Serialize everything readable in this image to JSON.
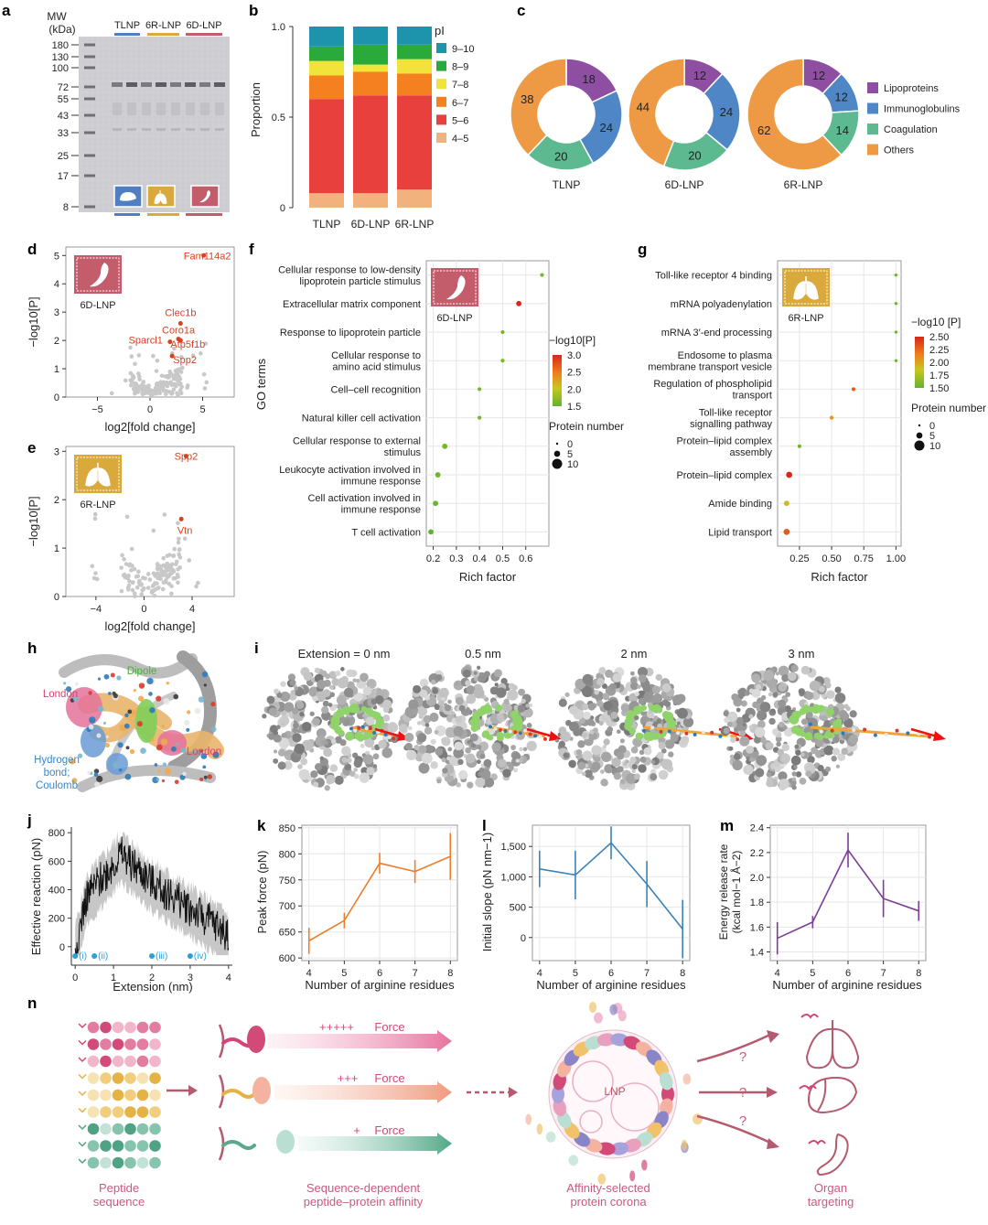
{
  "panels": {
    "a": {
      "label": "a",
      "mw_title": [
        "MW",
        "(kDa)"
      ],
      "mw_markers": [
        "180",
        "130",
        "100",
        "72",
        "55",
        "43",
        "33",
        "25",
        "17",
        "8"
      ],
      "lane_groups": [
        "TLNP",
        "6R-LNP",
        "6D-LNP"
      ]
    },
    "b": {
      "label": "b",
      "chart_data": {
        "type": "bar",
        "categories": [
          "TLNP",
          "6D-LNP",
          "6R-LNP"
        ],
        "ylabel": "Proportion",
        "yticks": [
          "0",
          "0.5",
          "1.0"
        ],
        "ylim": [
          0,
          1
        ],
        "legend_title": "pI",
        "series": [
          {
            "name": "4–5",
            "color": "#f2b27e",
            "values": [
              0.08,
              0.08,
              0.1
            ]
          },
          {
            "name": "5–6",
            "color": "#e8413d",
            "values": [
              0.52,
              0.54,
              0.52
            ]
          },
          {
            "name": "6–7",
            "color": "#f4801f",
            "values": [
              0.13,
              0.13,
              0.12
            ]
          },
          {
            "name": "7–8",
            "color": "#f2e33a",
            "values": [
              0.08,
              0.04,
              0.08
            ]
          },
          {
            "name": "8–9",
            "color": "#2aaa3a",
            "values": [
              0.08,
              0.11,
              0.08
            ]
          },
          {
            "name": "9–10",
            "color": "#1e93ac",
            "values": [
              0.11,
              0.1,
              0.1
            ]
          }
        ]
      }
    },
    "c": {
      "label": "c",
      "chart_data": {
        "type": "pie",
        "categories": [
          "Lipoproteins",
          "Immunoglobulins",
          "Coagulation",
          "Others"
        ],
        "colors": [
          "#8e4fa3",
          "#4f86c6",
          "#5cb990",
          "#ee9a45"
        ],
        "series": [
          {
            "name": "TLNP",
            "values": [
              18,
              24,
              20,
              38
            ]
          },
          {
            "name": "6D-LNP",
            "values": [
              12,
              24,
              20,
              44
            ]
          },
          {
            "name": "6R-LNP",
            "values": [
              12,
              12,
              14,
              62
            ]
          }
        ]
      }
    },
    "d": {
      "label": "d",
      "chart_data": {
        "type": "scatter",
        "xlabel": "log2[fold change]",
        "ylabel": "−log10[P]",
        "xlim": [
          -8,
          8
        ],
        "ylim": [
          0,
          5.3
        ],
        "xticks": [
          "−5",
          "0",
          "5"
        ],
        "yticks": [
          "0",
          "1",
          "2",
          "3",
          "4",
          "5"
        ],
        "badge": "6D-LNP",
        "highlight": [
          {
            "label": "Fam114a2",
            "x": 5.1,
            "y": 5.0
          },
          {
            "label": "Clec1b",
            "x": 2.9,
            "y": 2.6
          },
          {
            "label": "Coro1a",
            "x": 2.7,
            "y": 2.05
          },
          {
            "label": "Atp5f1b",
            "x": 2.9,
            "y": 2.0
          },
          {
            "label": "Sparcl1",
            "x": 1.9,
            "y": 1.95
          },
          {
            "label": "Spp2",
            "x": 2.1,
            "y": 1.45
          }
        ]
      }
    },
    "e": {
      "label": "e",
      "chart_data": {
        "type": "scatter",
        "xlabel": "log2[fold change]",
        "ylabel": "−log10[P]",
        "xlim": [
          -6.5,
          7.5
        ],
        "ylim": [
          0,
          3.1
        ],
        "xticks": [
          "−4",
          "0",
          "4"
        ],
        "yticks": [
          "0",
          "1",
          "2",
          "3"
        ],
        "badge": "6R-LNP",
        "highlight": [
          {
            "label": "Spp2",
            "x": 3.5,
            "y": 2.9
          },
          {
            "label": "Vtn",
            "x": 3.1,
            "y": 1.6
          }
        ]
      }
    },
    "f": {
      "label": "f",
      "chart_data": {
        "type": "scatter",
        "xlabel": "Rich factor",
        "ylabel": "GO terms",
        "badge": "6D-LNP",
        "xlim": [
          0.17,
          0.7
        ],
        "xticks": [
          "0.2",
          "0.3",
          "0.4",
          "0.5",
          "0.6"
        ],
        "color_title": "−log10[P]",
        "color_ticks": [
          "3.0",
          "2.5",
          "2.0",
          "1.5"
        ],
        "size_title": "Protein number",
        "size_ticks": [
          "0",
          "5",
          "10"
        ],
        "terms": [
          {
            "label": [
              "Cellular response to low-density",
              "lipoprotein particle stimulus"
            ],
            "x": 0.67,
            "p": 1.6,
            "n": 2
          },
          {
            "label": [
              "Extracellular matrix component"
            ],
            "x": 0.57,
            "p": 3.0,
            "n": 4
          },
          {
            "label": [
              "Response to lipoprotein particle"
            ],
            "x": 0.5,
            "p": 1.6,
            "n": 2
          },
          {
            "label": [
              "Cellular response to",
              "amino acid stimulus"
            ],
            "x": 0.5,
            "p": 1.6,
            "n": 2
          },
          {
            "label": [
              "Cell–cell recognition"
            ],
            "x": 0.4,
            "p": 1.6,
            "n": 2
          },
          {
            "label": [
              "Natural killer cell activation"
            ],
            "x": 0.4,
            "p": 1.6,
            "n": 2
          },
          {
            "label": [
              "Cellular response to external",
              "stimulus"
            ],
            "x": 0.25,
            "p": 1.6,
            "n": 4
          },
          {
            "label": [
              "Leukocyte activation involved in",
              "immune response"
            ],
            "x": 0.22,
            "p": 1.55,
            "n": 4
          },
          {
            "label": [
              "Cell activation involved in",
              "immune response"
            ],
            "x": 0.21,
            "p": 1.55,
            "n": 4
          },
          {
            "label": [
              "T cell activation"
            ],
            "x": 0.19,
            "p": 1.5,
            "n": 4
          }
        ]
      }
    },
    "g": {
      "label": "g",
      "chart_data": {
        "type": "scatter",
        "xlabel": "Rich factor",
        "badge": "6R-LNP",
        "xlim": [
          0.08,
          1.04
        ],
        "xticks": [
          "0.25",
          "0.50",
          "0.75",
          "1.00"
        ],
        "color_title": "−log10 [P]",
        "color_ticks": [
          "2.50",
          "2.25",
          "2.00",
          "1.75",
          "1.50"
        ],
        "size_title": "Protein number",
        "size_ticks": [
          "0",
          "5",
          "10"
        ],
        "terms": [
          {
            "label": [
              "Toll-like receptor 4 binding"
            ],
            "x": 1.0,
            "p": 1.5,
            "n": 1
          },
          {
            "label": [
              "mRNA polyadenylation"
            ],
            "x": 1.0,
            "p": 1.5,
            "n": 1
          },
          {
            "label": [
              "mRNA 3′-end processing"
            ],
            "x": 1.0,
            "p": 1.5,
            "n": 1
          },
          {
            "label": [
              "Endosome to plasma",
              "membrane transport vesicle"
            ],
            "x": 1.0,
            "p": 1.5,
            "n": 1
          },
          {
            "label": [
              "Regulation of phospholipid",
              "transport"
            ],
            "x": 0.67,
            "p": 2.3,
            "n": 2
          },
          {
            "label": [
              "Toll-like receptor",
              "signalling pathway"
            ],
            "x": 0.5,
            "p": 2.05,
            "n": 2
          },
          {
            "label": [
              "Protein–lipid complex",
              "assembly"
            ],
            "x": 0.25,
            "p": 1.55,
            "n": 2
          },
          {
            "label": [
              "Protein–lipid complex"
            ],
            "x": 0.17,
            "p": 2.5,
            "n": 5
          },
          {
            "label": [
              "Amide binding"
            ],
            "x": 0.15,
            "p": 1.9,
            "n": 4
          },
          {
            "label": [
              "Lipid transport"
            ],
            "x": 0.15,
            "p": 2.3,
            "n": 5
          }
        ]
      }
    },
    "h": {
      "label": "h",
      "annotations": [
        "Dipole",
        "London",
        "London",
        "Hydrogen",
        "bond;",
        "Coulomb"
      ]
    },
    "i": {
      "label": "i",
      "frames": [
        "Extension = 0 nm",
        "0.5 nm",
        "2 nm",
        "3 nm"
      ]
    },
    "j": {
      "label": "j",
      "chart_data": {
        "type": "line",
        "xlabel": "Extension (nm)",
        "ylabel": "Effective reaction (pN)",
        "xlim": [
          -0.1,
          4.1
        ],
        "ylim": [
          -130,
          840
        ],
        "xticks": [
          "0",
          "1",
          "2",
          "3",
          "4"
        ],
        "yticks": [
          "0",
          "200",
          "400",
          "600",
          "800"
        ],
        "markers": [
          {
            "label": "(i)",
            "x": 0
          },
          {
            "label": "(ii)",
            "x": 0.5
          },
          {
            "label": "(iii)",
            "x": 2
          },
          {
            "label": "(iv)",
            "x": 3
          }
        ]
      }
    },
    "k": {
      "label": "k",
      "chart_data": {
        "type": "line",
        "color": "#ee7d2c",
        "xlabel": "Number of arginine residues",
        "ylabel": "Peak force (pN)",
        "x": [
          4,
          5,
          6,
          7,
          8
        ],
        "y": [
          633,
          672,
          782,
          766,
          795
        ],
        "err": [
          25,
          15,
          20,
          22,
          45
        ],
        "xlim": [
          3.8,
          8.2
        ],
        "ylim": [
          595,
          855
        ],
        "xticks": [
          "4",
          "5",
          "6",
          "7",
          "8"
        ],
        "yticks": [
          "600",
          "650",
          "700",
          "750",
          "800",
          "850"
        ]
      }
    },
    "l": {
      "label": "l",
      "chart_data": {
        "type": "line",
        "color": "#3b83b7",
        "xlabel": "Number of arginine residues",
        "ylabel": "Initial slope (pN nm−1)",
        "x": [
          4,
          5,
          6,
          7,
          8
        ],
        "y": [
          1130,
          1030,
          1560,
          880,
          140
        ],
        "err": [
          300,
          400,
          270,
          380,
          480
        ],
        "xlim": [
          3.8,
          8.2
        ],
        "ylim": [
          -380,
          1850
        ],
        "xticks": [
          "4",
          "5",
          "6",
          "7",
          "8"
        ],
        "yticks": [
          "0",
          "500",
          "1,000",
          "1,500"
        ]
      }
    },
    "m": {
      "label": "m",
      "chart_data": {
        "type": "line",
        "color": "#7a3d9a",
        "xlabel": "Number of arginine residues",
        "ylabel": "Energy release rate",
        "ylabel2": "(kcal mol−1 Å−2)",
        "x": [
          4,
          5,
          6,
          7,
          8
        ],
        "y": [
          1.51,
          1.64,
          2.22,
          1.83,
          1.73
        ],
        "err": [
          0.13,
          0.05,
          0.14,
          0.15,
          0.08
        ],
        "xlim": [
          3.8,
          8.2
        ],
        "ylim": [
          1.33,
          2.42
        ],
        "xticks": [
          "4",
          "5",
          "6",
          "7",
          "8"
        ],
        "yticks": [
          "1.4",
          "1.6",
          "1.8",
          "2.0",
          "2.2",
          "2.4"
        ]
      }
    },
    "n": {
      "label": "n",
      "force_labels": [
        "+++++",
        "+++",
        "+"
      ],
      "force_word": "Force",
      "lnp": "LNP",
      "question": "?",
      "captions": [
        [
          "Peptide",
          "sequence"
        ],
        [
          "Sequence-dependent",
          "peptide–protein affinity"
        ],
        [
          "Affinity-selected",
          "protein corona"
        ],
        [
          "Organ",
          "targeting"
        ]
      ]
    }
  }
}
